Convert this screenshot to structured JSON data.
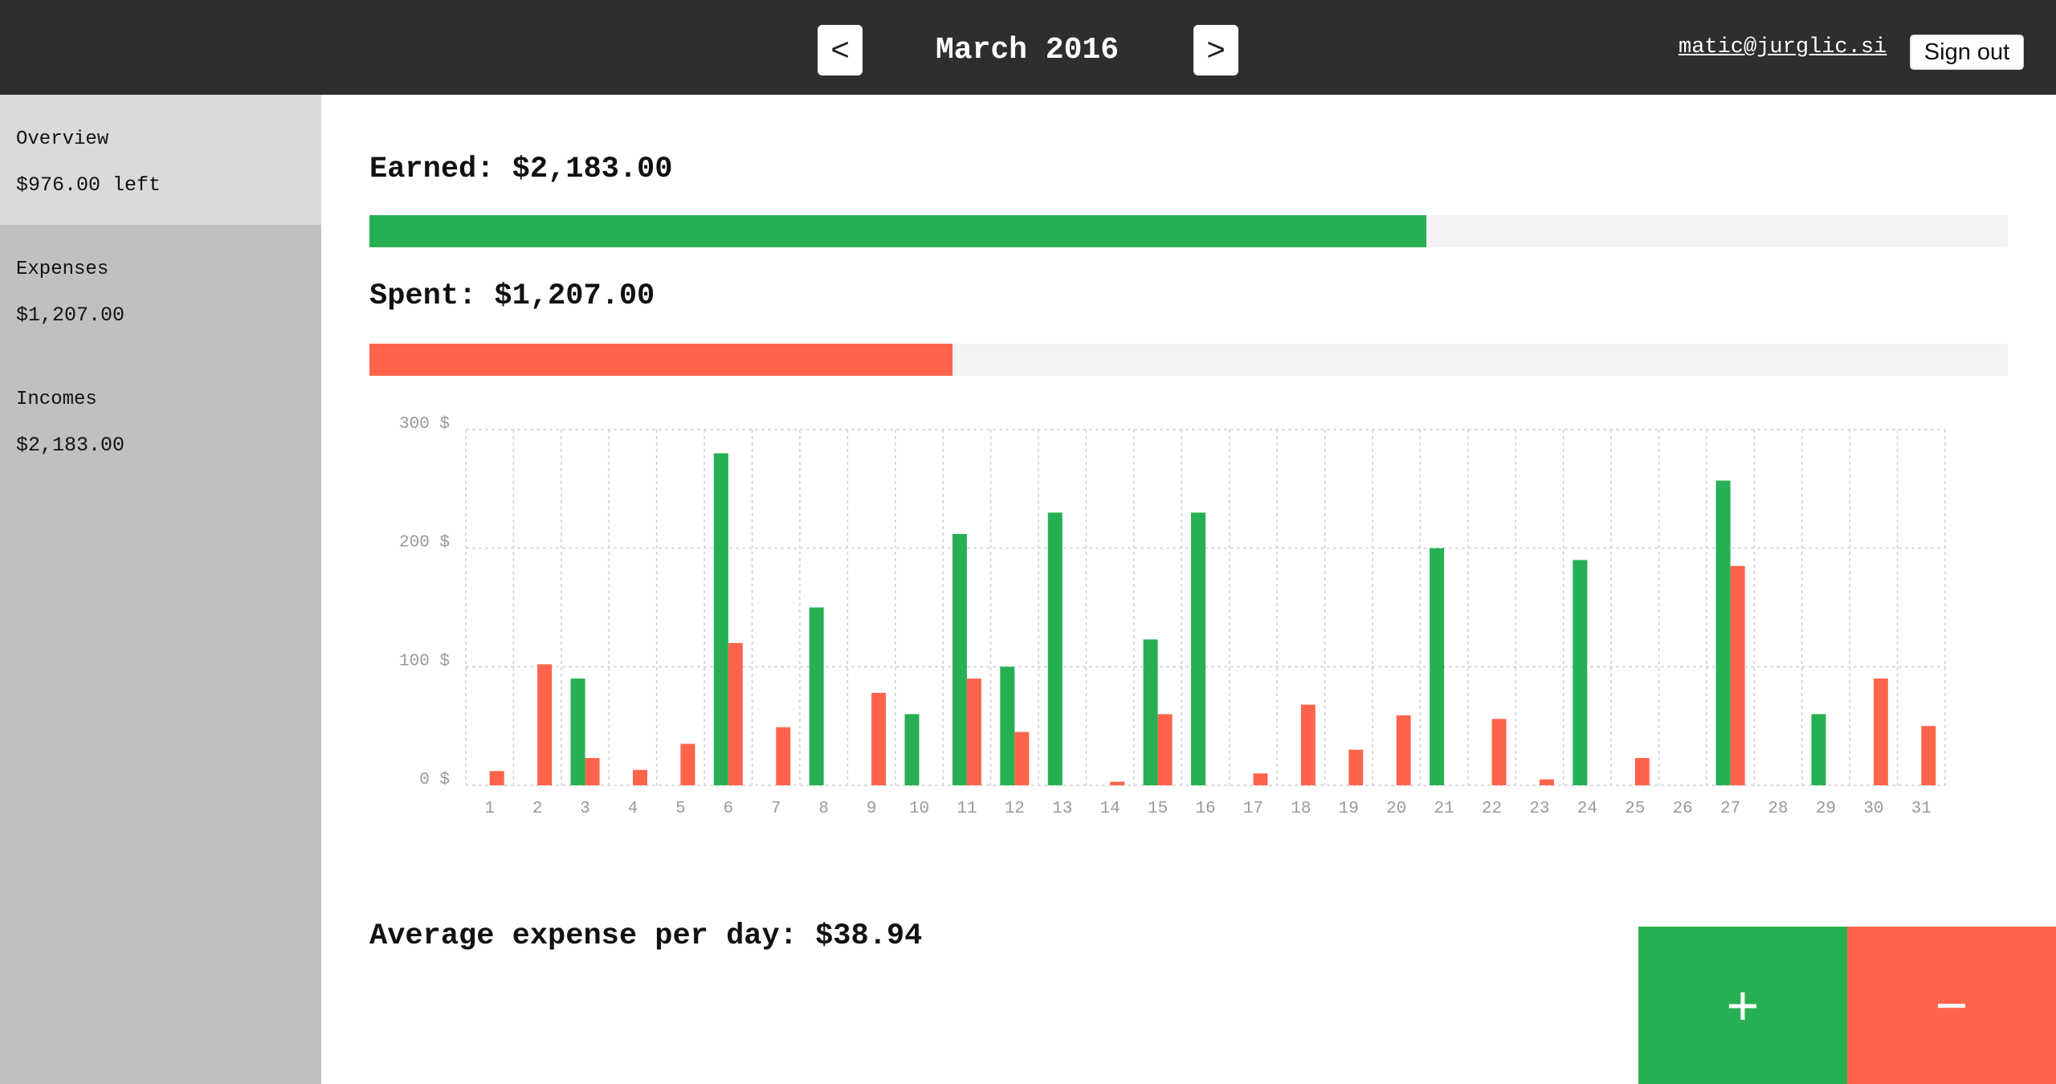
{
  "header": {
    "prev_label": "<",
    "month": "March 2016",
    "next_label": ">",
    "email": "matic@jurglic.si",
    "signout_label": "Sign out"
  },
  "sidebar": {
    "items": [
      {
        "label": "Overview",
        "value": "$976.00 left",
        "active": true
      },
      {
        "label": "Expenses",
        "value": "$1,207.00",
        "active": false
      },
      {
        "label": "Incomes",
        "value": "$2,183.00",
        "active": false
      }
    ]
  },
  "summary": {
    "earned_text": "Earned: $2,183.00",
    "earned_fraction": 0.645,
    "spent_text": "Spent: $1,207.00",
    "spent_fraction": 0.356
  },
  "average_text": "Average expense per day: $38.94",
  "actions": {
    "add_label": "+",
    "subtract_label": "−"
  },
  "colors": {
    "income": "#27b053",
    "expense": "#ff644b",
    "topbar": "#2e2e2e",
    "sidebar": "#c0c0c0",
    "sidebar_active": "#dadada",
    "track": "#f3f3f3"
  },
  "icons": {
    "prev": "chevron-left-icon",
    "next": "chevron-right-icon",
    "add": "plus-icon",
    "subtract": "minus-icon"
  },
  "chart_data": {
    "type": "bar",
    "categories": [
      "1",
      "2",
      "3",
      "4",
      "5",
      "6",
      "7",
      "8",
      "9",
      "10",
      "11",
      "12",
      "13",
      "14",
      "15",
      "16",
      "17",
      "18",
      "19",
      "20",
      "21",
      "22",
      "23",
      "24",
      "25",
      "26",
      "27",
      "28",
      "29",
      "30",
      "31"
    ],
    "y_tick_labels": [
      "0 $",
      "100 $",
      "200 $",
      "300 $"
    ],
    "y_ticks": [
      0,
      100,
      200,
      300
    ],
    "ylim": [
      0,
      300
    ],
    "grid": true,
    "series": [
      {
        "key": "income",
        "values": [
          0,
          0,
          90,
          0,
          0,
          280,
          0,
          150,
          0,
          60,
          212,
          100,
          230,
          0,
          123,
          230,
          0,
          0,
          0,
          0,
          200,
          0,
          0,
          190,
          0,
          0,
          257,
          0,
          60,
          0,
          0
        ]
      },
      {
        "key": "expense",
        "values": [
          12,
          102,
          23,
          13,
          35,
          120,
          49,
          0,
          78,
          0,
          90,
          45,
          0,
          3,
          60,
          0,
          10,
          68,
          30,
          59,
          0,
          56,
          5,
          0,
          23,
          0,
          185,
          0,
          0,
          90,
          50
        ]
      }
    ]
  }
}
